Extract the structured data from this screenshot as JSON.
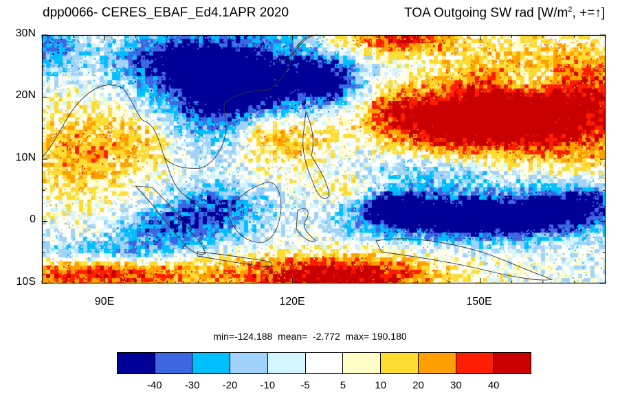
{
  "title_left": "dpp0066- CERES_EBAF_Ed4.1APR 2020",
  "title_right": {
    "prefix": "TOA Outgoing SW rad [W/m",
    "sup": "2",
    "suffix": ", +=↑]"
  },
  "map": {
    "lon_range": [
      80,
      170
    ],
    "lat_range": [
      -10,
      30
    ],
    "lat_ticks": [
      "30N",
      "20N",
      "10N",
      "0",
      "10S"
    ],
    "lon_ticks": [
      "90E",
      "120E",
      "150E"
    ]
  },
  "stats": {
    "min": "-124.188",
    "mean": "-2.772",
    "max": "190.180",
    "text": "min=-124.188  mean=  -2.772  max= 190.180"
  },
  "colorbar": {
    "colors": [
      "#000096",
      "#3e66e2",
      "#00bfff",
      "#a0d2fa",
      "#d2f5ff",
      "#ffffff",
      "#fffdc8",
      "#fddc32",
      "#ffa000",
      "#ff1e00",
      "#c80000"
    ],
    "labels": [
      "-40",
      "-30",
      "-20",
      "-10",
      "-5",
      "5",
      "10",
      "20",
      "30",
      "40"
    ]
  }
}
